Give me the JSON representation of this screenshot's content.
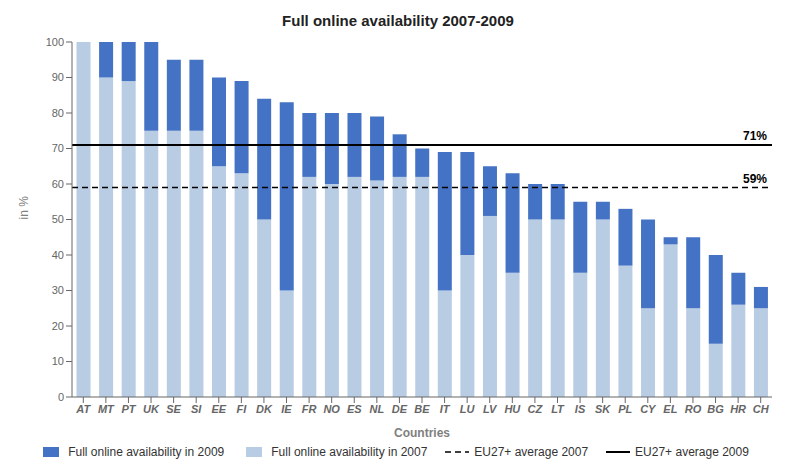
{
  "chart_data": {
    "type": "bar",
    "title": "Full online availability 2007-2009",
    "xlabel": "Countries",
    "ylabel": "in %",
    "categories": [
      "AT",
      "MT",
      "PT",
      "UK",
      "SE",
      "SI",
      "EE",
      "FI",
      "DK",
      "IE",
      "FR",
      "NO",
      "ES",
      "NL",
      "DE",
      "BE",
      "IT",
      "LU",
      "LV",
      "HU",
      "CZ",
      "LT",
      "IS",
      "SK",
      "PL",
      "CY",
      "EL",
      "RO",
      "BG",
      "HR",
      "CH"
    ],
    "series": [
      {
        "name": "Full online availability in 2007",
        "color": "#B8CCE4",
        "values": [
          100,
          90,
          89,
          75,
          75,
          75,
          65,
          63,
          50,
          30,
          62,
          60,
          62,
          61,
          62,
          62,
          30,
          40,
          51,
          35,
          50,
          50,
          35,
          50,
          37,
          25,
          43,
          25,
          15,
          26,
          25
        ]
      },
      {
        "name": "Full online availability in 2009",
        "color": "#4472C4",
        "values": [
          0,
          10,
          11,
          25,
          20,
          20,
          25,
          26,
          34,
          53,
          18,
          20,
          18,
          18,
          12,
          8,
          39,
          29,
          14,
          28,
          10,
          10,
          20,
          5,
          16,
          25,
          2,
          20,
          25,
          9,
          6
        ]
      }
    ],
    "stacked": true,
    "reference_lines": [
      {
        "name": "EU27+ average 2007",
        "value": 59,
        "label": "59%",
        "line_style": "dashed",
        "color": "#000000"
      },
      {
        "name": "EU27+ average 2009",
        "value": 71,
        "label": "71%",
        "line_style": "solid",
        "color": "#000000"
      }
    ],
    "ylim": [
      0,
      100
    ],
    "yticks": [
      0,
      10,
      20,
      30,
      40,
      50,
      60,
      70,
      80,
      90,
      100
    ],
    "grid": false,
    "legend": "bottom"
  }
}
